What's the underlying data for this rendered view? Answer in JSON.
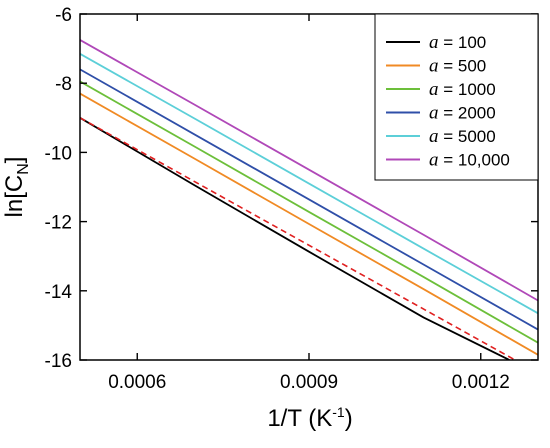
{
  "chart_data": {
    "type": "line",
    "xlabel": {
      "main": "1/T (K",
      "sup": "-1",
      "end": ")"
    },
    "ylabel": {
      "main": "ln[C",
      "sub": "N",
      "end": "]"
    },
    "xlim": [
      0.0005,
      0.0013
    ],
    "ylim": [
      -16,
      -6
    ],
    "x_ticks": [
      0.0006,
      0.0009,
      0.0012
    ],
    "x_tick_labels": [
      "0.0006",
      "0.0009",
      "0.0012"
    ],
    "y_ticks": [
      -16,
      -14,
      -12,
      -10,
      -8,
      -6
    ],
    "y_tick_labels": [
      "-16",
      "-14",
      "-12",
      "-10",
      "-8",
      "-6"
    ],
    "legend_position": "top-right",
    "legend_prefix": "a",
    "series": [
      {
        "name": "= 100",
        "color": "#000000",
        "dashed": false,
        "points": [
          [
            0.0005,
            -9.0
          ],
          [
            0.0007,
            -10.95
          ],
          [
            0.0009,
            -12.87
          ],
          [
            0.0011,
            -14.77
          ],
          [
            0.00125,
            -16.0
          ]
        ]
      },
      {
        "name": "= 500",
        "color": "#f08a24",
        "dashed": false,
        "points": [
          [
            0.0005,
            -8.3
          ],
          [
            0.0007,
            -10.18
          ],
          [
            0.0009,
            -12.07
          ],
          [
            0.0011,
            -13.95
          ],
          [
            0.0013,
            -15.85
          ]
        ]
      },
      {
        "name": "= 1000",
        "color": "#6cbf3a",
        "dashed": false,
        "points": [
          [
            0.0005,
            -7.95
          ],
          [
            0.0007,
            -9.83
          ],
          [
            0.0009,
            -11.72
          ],
          [
            0.0011,
            -13.6
          ],
          [
            0.0013,
            -15.5
          ]
        ]
      },
      {
        "name": "= 2000",
        "color": "#2f4fa8",
        "dashed": false,
        "points": [
          [
            0.0005,
            -7.6
          ],
          [
            0.0007,
            -9.48
          ],
          [
            0.0009,
            -11.36
          ],
          [
            0.0011,
            -13.24
          ],
          [
            0.0013,
            -15.12
          ]
        ]
      },
      {
        "name": "= 5000",
        "color": "#5ccfd8",
        "dashed": false,
        "points": [
          [
            0.0005,
            -7.15
          ],
          [
            0.0007,
            -9.02
          ],
          [
            0.0009,
            -10.9
          ],
          [
            0.0011,
            -12.78
          ],
          [
            0.0013,
            -14.65
          ]
        ]
      },
      {
        "name": "= 10,000",
        "color": "#b048b8",
        "dashed": false,
        "points": [
          [
            0.0005,
            -6.75
          ],
          [
            0.0007,
            -8.62
          ],
          [
            0.0009,
            -10.5
          ],
          [
            0.0011,
            -12.38
          ],
          [
            0.0013,
            -14.28
          ]
        ]
      },
      {
        "color": "#e02020",
        "dashed": true,
        "points": [
          [
            0.0005,
            -9.0
          ],
          [
            0.00126,
            -16.0
          ]
        ]
      }
    ]
  }
}
